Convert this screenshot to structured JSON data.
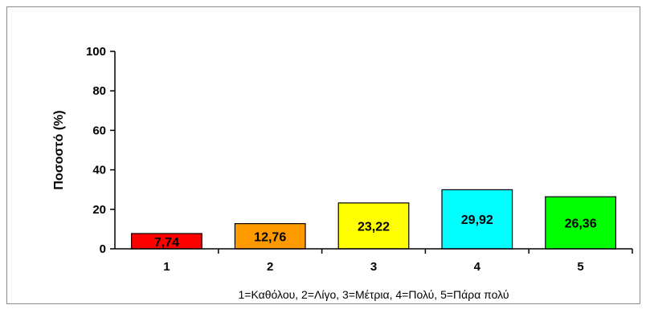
{
  "chart_data": {
    "type": "bar",
    "categories": [
      "1",
      "2",
      "3",
      "4",
      "5"
    ],
    "values": [
      7.74,
      12.76,
      23.22,
      29.92,
      26.36
    ],
    "value_labels": [
      "7,74",
      "12,76",
      "23,22",
      "29,92",
      "26,36"
    ],
    "colors": [
      "#ff0000",
      "#ff9900",
      "#ffff00",
      "#00ffff",
      "#00ff00"
    ],
    "title": "",
    "xlabel": "1=Καθόλου, 2=Λίγο, 3=Μέτρια, 4=Πολύ, 5=Πάρα πολύ",
    "ylabel": "Ποσοστό (%)",
    "ylim": [
      0,
      100
    ],
    "yticks": [
      0,
      20,
      40,
      60,
      80,
      100
    ],
    "grid": false,
    "legend": "none"
  }
}
